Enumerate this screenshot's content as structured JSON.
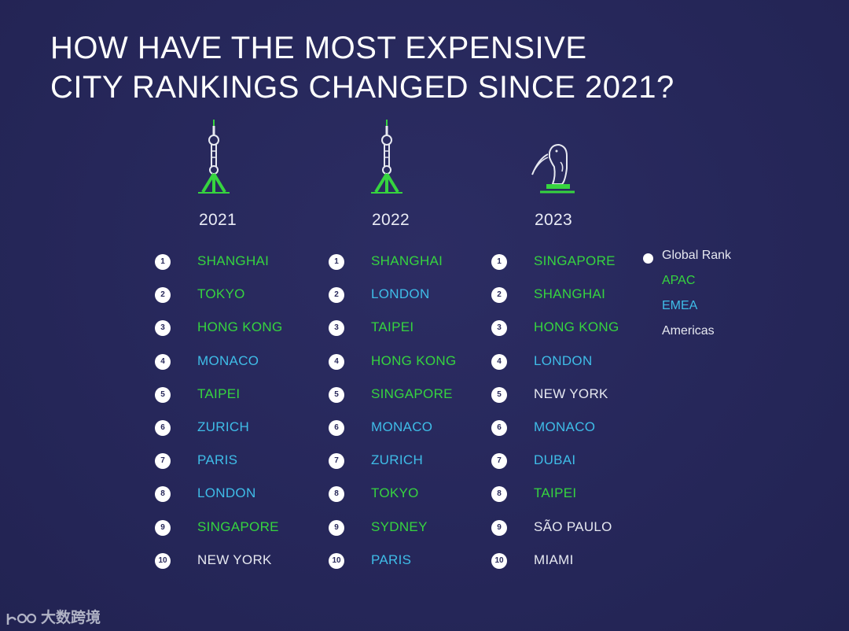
{
  "title": {
    "line1": "HOW HAVE THE MOST EXPENSIVE",
    "line2": "CITY RANKINGS CHANGED SINCE 2021?"
  },
  "colors": {
    "background": "#27285a",
    "APAC": "#36d43f",
    "EMEA": "#3fbde8",
    "Americas": "#e6e8f0",
    "rank_badge": "#ffffff"
  },
  "columns": [
    {
      "year": "2021",
      "icon": "oriental-pearl-tower-icon",
      "cities": [
        {
          "rank": "1",
          "name": "SHANGHAI",
          "region": "APAC"
        },
        {
          "rank": "2",
          "name": "TOKYO",
          "region": "APAC"
        },
        {
          "rank": "3",
          "name": "HONG KONG",
          "region": "APAC"
        },
        {
          "rank": "4",
          "name": "MONACO",
          "region": "EMEA"
        },
        {
          "rank": "5",
          "name": "TAIPEI",
          "region": "APAC"
        },
        {
          "rank": "6",
          "name": "ZURICH",
          "region": "EMEA"
        },
        {
          "rank": "7",
          "name": "PARIS",
          "region": "EMEA"
        },
        {
          "rank": "8",
          "name": "LONDON",
          "region": "EMEA"
        },
        {
          "rank": "9",
          "name": "SINGAPORE",
          "region": "APAC"
        },
        {
          "rank": "10",
          "name": "NEW YORK",
          "region": "Americas"
        }
      ]
    },
    {
      "year": "2022",
      "icon": "oriental-pearl-tower-icon",
      "cities": [
        {
          "rank": "1",
          "name": "SHANGHAI",
          "region": "APAC"
        },
        {
          "rank": "2",
          "name": "LONDON",
          "region": "EMEA"
        },
        {
          "rank": "3",
          "name": "TAIPEI",
          "region": "APAC"
        },
        {
          "rank": "4",
          "name": "HONG KONG",
          "region": "APAC"
        },
        {
          "rank": "5",
          "name": "SINGAPORE",
          "region": "APAC"
        },
        {
          "rank": "6",
          "name": "MONACO",
          "region": "EMEA"
        },
        {
          "rank": "7",
          "name": "ZURICH",
          "region": "EMEA"
        },
        {
          "rank": "8",
          "name": "TOKYO",
          "region": "APAC"
        },
        {
          "rank": "9",
          "name": "SYDNEY",
          "region": "APAC"
        },
        {
          "rank": "10",
          "name": "PARIS",
          "region": "EMEA"
        }
      ]
    },
    {
      "year": "2023",
      "icon": "merlion-icon",
      "cities": [
        {
          "rank": "1",
          "name": "SINGAPORE",
          "region": "APAC"
        },
        {
          "rank": "2",
          "name": "SHANGHAI",
          "region": "APAC"
        },
        {
          "rank": "3",
          "name": "HONG KONG",
          "region": "APAC"
        },
        {
          "rank": "4",
          "name": "LONDON",
          "region": "EMEA"
        },
        {
          "rank": "5",
          "name": "NEW YORK",
          "region": "Americas"
        },
        {
          "rank": "6",
          "name": "MONACO",
          "region": "EMEA"
        },
        {
          "rank": "7",
          "name": "DUBAI",
          "region": "EMEA"
        },
        {
          "rank": "8",
          "name": "TAIPEI",
          "region": "APAC"
        },
        {
          "rank": "9",
          "name": "SÃO PAULO",
          "region": "Americas"
        },
        {
          "rank": "10",
          "name": "MIAMI",
          "region": "Americas"
        }
      ]
    }
  ],
  "legend": {
    "global_rank": "Global Rank",
    "apac": "APAC",
    "emea": "EMEA",
    "americas": "Americas"
  },
  "watermark": {
    "text": "大数跨境"
  }
}
